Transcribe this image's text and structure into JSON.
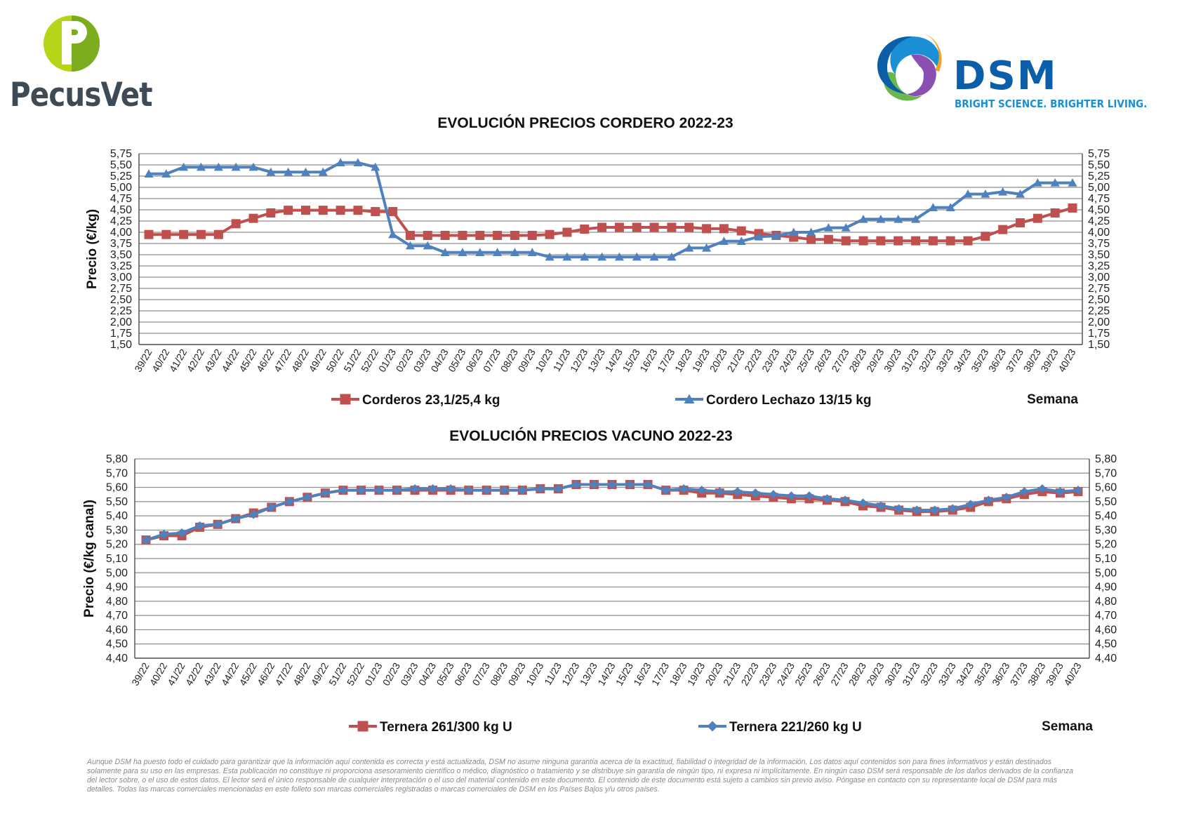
{
  "logos": {
    "pecusvet": {
      "name": "PecusVet",
      "mark_colors": [
        "#9dc31b",
        "#6fa51c"
      ]
    },
    "dsm": {
      "name": "DSM",
      "tagline": "BRIGHT SCIENCE. BRIGHTER LIVING.",
      "colors": [
        "#0b5ea8",
        "#1a8fd6",
        "#f2a12b",
        "#6ab84b",
        "#8a4fb0"
      ]
    }
  },
  "chart_data": [
    {
      "type": "line",
      "title": "EVOLUCIÓN PRECIOS CORDERO 2022-23",
      "ylabel": "Precio (€/kg)",
      "xlabel": "Semana",
      "ylim": [
        1.5,
        5.75
      ],
      "yticks": [
        "1,50",
        "1,75",
        "2,00",
        "2,25",
        "2,50",
        "2,75",
        "3,00",
        "3,25",
        "3,50",
        "3,75",
        "4,00",
        "4,25",
        "4,50",
        "4,75",
        "5,00",
        "5,25",
        "5,50",
        "5,75"
      ],
      "y_decimal_comma": true,
      "grid": true,
      "legend_position": "bottom",
      "categories": [
        "39/22",
        "40/22",
        "41/22",
        "42/22",
        "43/22",
        "44/22",
        "45/22",
        "46/22",
        "47/22",
        "48/22",
        "49/22",
        "50/22",
        "51/22",
        "52/22",
        "01/23",
        "02/23",
        "03/23",
        "04/23",
        "05/23",
        "06/23",
        "07/23",
        "08/23",
        "09/23",
        "10/23",
        "11/23",
        "12/23",
        "13/23",
        "14/23",
        "15/23",
        "16/23",
        "17/23",
        "18/23",
        "19/23",
        "20/23",
        "21/23",
        "22/23",
        "23/23",
        "24/23",
        "25/23",
        "26/23",
        "27/23",
        "28/23",
        "29/23",
        "30/23",
        "31/23",
        "32/23",
        "33/23",
        "34/23",
        "35/23",
        "36/23",
        "37/23",
        "38/23",
        "39/23",
        "40/23"
      ],
      "series": [
        {
          "name": "Corderos 23,1/25,4 kg",
          "color": "#c0504d",
          "marker": "square",
          "values": [
            3.95,
            3.95,
            3.95,
            3.95,
            3.95,
            4.19,
            4.31,
            4.43,
            4.49,
            4.49,
            4.49,
            4.49,
            4.49,
            4.46,
            4.46,
            3.93,
            3.93,
            3.93,
            3.93,
            3.93,
            3.93,
            3.93,
            3.93,
            3.95,
            4.0,
            4.07,
            4.11,
            4.11,
            4.11,
            4.11,
            4.11,
            4.11,
            4.08,
            4.08,
            4.03,
            3.97,
            3.93,
            3.89,
            3.84,
            3.84,
            3.81,
            3.81,
            3.81,
            3.81,
            3.81,
            3.81,
            3.81,
            3.81,
            3.91,
            4.06,
            4.21,
            4.31,
            4.43,
            4.54
          ]
        },
        {
          "name": "Cordero Lechazo 13/15 kg",
          "color": "#4f81bd",
          "marker": "triangle",
          "values": [
            5.3,
            5.3,
            5.45,
            5.45,
            5.45,
            5.45,
            5.45,
            5.34,
            5.34,
            5.34,
            5.34,
            5.55,
            5.55,
            5.45,
            3.95,
            3.7,
            3.7,
            3.55,
            3.55,
            3.55,
            3.55,
            3.55,
            3.55,
            3.45,
            3.45,
            3.45,
            3.45,
            3.45,
            3.45,
            3.45,
            3.45,
            3.65,
            3.65,
            3.8,
            3.8,
            3.9,
            3.92,
            4.0,
            4.0,
            4.1,
            4.1,
            4.29,
            4.29,
            4.29,
            4.29,
            4.55,
            4.55,
            4.85,
            4.85,
            4.9,
            4.85,
            5.1,
            5.1,
            5.1
          ]
        }
      ]
    },
    {
      "type": "line",
      "title": "EVOLUCIÓN PRECIOS VACUNO 2022-23",
      "ylabel": "Precio (€/kg canal)",
      "xlabel": "Semana",
      "ylim": [
        4.4,
        5.8
      ],
      "yticks": [
        "4,40",
        "4,50",
        "4,60",
        "4,70",
        "4,80",
        "4,90",
        "5,00",
        "5,10",
        "5,20",
        "5,30",
        "5,40",
        "5,50",
        "5,60",
        "5,70",
        "5,80"
      ],
      "y_decimal_comma": true,
      "grid": true,
      "legend_position": "bottom",
      "categories": [
        "39/22",
        "40/22",
        "41/22",
        "42/22",
        "43/22",
        "44/22",
        "45/22",
        "46/22",
        "47/22",
        "48/22",
        "49/22",
        "51/22",
        "52/22",
        "01/23",
        "02/23",
        "03/23",
        "04/23",
        "05/23",
        "06/23",
        "07/23",
        "08/23",
        "09/23",
        "10/23",
        "11/23",
        "12/23",
        "13/23",
        "14/23",
        "15/23",
        "16/23",
        "17/23",
        "18/23",
        "19/23",
        "20/23",
        "21/23",
        "22/23",
        "23/23",
        "24/23",
        "25/23",
        "26/23",
        "27/23",
        "28/23",
        "29/23",
        "30/23",
        "31/23",
        "32/23",
        "33/23",
        "34/23",
        "35/23",
        "36/23",
        "37/23",
        "38/23",
        "39/23",
        "40/23"
      ],
      "series": [
        {
          "name": "Ternera 261/300 kg U",
          "color": "#c0504d",
          "marker": "square",
          "values": [
            5.23,
            5.26,
            5.26,
            5.32,
            5.34,
            5.38,
            5.42,
            5.46,
            5.5,
            5.53,
            5.56,
            5.58,
            5.58,
            5.58,
            5.58,
            5.58,
            5.58,
            5.58,
            5.58,
            5.58,
            5.58,
            5.58,
            5.59,
            5.59,
            5.62,
            5.62,
            5.62,
            5.62,
            5.62,
            5.58,
            5.58,
            5.56,
            5.56,
            5.55,
            5.54,
            5.53,
            5.52,
            5.52,
            5.51,
            5.5,
            5.47,
            5.46,
            5.44,
            5.43,
            5.43,
            5.44,
            5.46,
            5.5,
            5.52,
            5.55,
            5.57,
            5.56,
            5.57
          ]
        },
        {
          "name": "Ternera 221/260 kg U",
          "color": "#4f81bd",
          "marker": "diamond",
          "values": [
            5.23,
            5.27,
            5.28,
            5.33,
            5.34,
            5.38,
            5.41,
            5.46,
            5.5,
            5.53,
            5.56,
            5.58,
            5.58,
            5.58,
            5.58,
            5.59,
            5.59,
            5.59,
            5.58,
            5.58,
            5.58,
            5.58,
            5.59,
            5.59,
            5.62,
            5.62,
            5.62,
            5.62,
            5.62,
            5.58,
            5.59,
            5.58,
            5.57,
            5.57,
            5.56,
            5.55,
            5.54,
            5.54,
            5.52,
            5.51,
            5.49,
            5.47,
            5.45,
            5.44,
            5.44,
            5.45,
            5.48,
            5.51,
            5.53,
            5.57,
            5.59,
            5.57,
            5.58
          ]
        }
      ]
    }
  ],
  "disclaimer": "Aunque DSM ha puesto todo el cuidado para garantizar que la información aquí contenida es correcta y está actualizada, DSM no asume ninguna garantía acerca de la exactitud, fiabilidad o integridad de la información. Los datos aquí contenidos son para fines informativos y están destinados solamente para su uso en las empresas. Esta publicación no constituye ni proporciona asesoramiento científico o médico, diagnóstico o tratamiento y se distribuye sin garantía de ningún tipo, ni expresa ni implícitamente. En ningún caso DSM será responsable de los daños derivados de la confianza del lector sobre, o el uso de estos datos. El lector será el único responsable de cualquier interpretación o el uso del material contenido en este documento. El contenido de este documento está sujeto a cambios sin previo aviso. Póngase en contacto con su representante local de DSM para más detalles. Todas las marcas comerciales mencionadas en este folleto son marcas comerciales registradas o marcas comerciales de DSM en los Países Bajos y/u otros países."
}
